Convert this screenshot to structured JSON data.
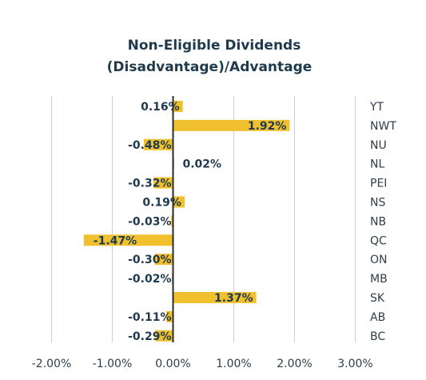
{
  "chart_data": {
    "type": "bar",
    "orientation": "horizontal",
    "title": [
      "Non-Eligible Dividends",
      "(Disadvantage)/Advantage"
    ],
    "categories": [
      "YT",
      "NWT",
      "NU",
      "NL",
      "PEI",
      "NS",
      "NB",
      "QC",
      "ON",
      "MB",
      "SK",
      "AB",
      "BC"
    ],
    "values": [
      0.16,
      1.92,
      -0.48,
      0.02,
      -0.32,
      0.19,
      -0.03,
      -1.47,
      -0.3,
      -0.02,
      1.37,
      -0.11,
      -0.29
    ],
    "value_labels": [
      "0.16%",
      "1.92%",
      "-0.48%",
      "0.02%",
      "-0.32%",
      "0.19%",
      "-0.03%",
      "-1.47%",
      "-0.30%",
      "-0.02%",
      "1.37%",
      "-0.11%",
      "-0.29%"
    ],
    "xlim": [
      -2.0,
      3.0
    ],
    "xticks": [
      -2,
      -1,
      0,
      1,
      2,
      3
    ],
    "xtick_labels": [
      "-2.00%",
      "-1.00%",
      "0.00%",
      "1.00%",
      "2.00%",
      "3.00%"
    ],
    "grid": true,
    "bar_color": "#f0c02f",
    "zero_line_color": "#2b2b2b",
    "grid_color": "#cfcfcf",
    "legend": false
  }
}
